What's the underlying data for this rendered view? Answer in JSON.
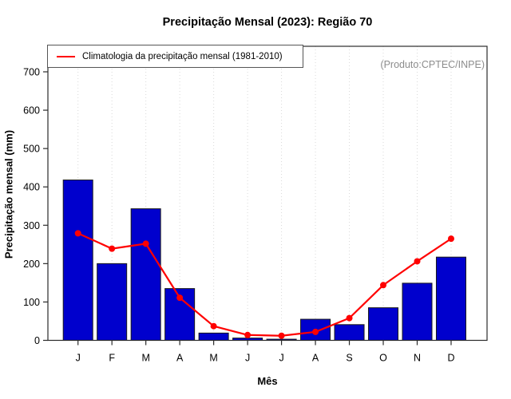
{
  "title": "Precipitação Mensal (2023): Região 70",
  "annotation": "(Produto:CPTEC/INPE)",
  "legend": {
    "label": "Climatologia da precipitação mensal (1981-2010)"
  },
  "colors": {
    "bar": "#0000CD",
    "bar_border": "#1a1a1a",
    "line": "#FF0000",
    "grid": "#D9D9D9",
    "axis": "#2b2b2b",
    "annotation_text": "#8c8c8c"
  },
  "chart_data": {
    "type": "bar",
    "title": "Precipitação Mensal (2023): Região 70",
    "xlabel": "Mês",
    "ylabel": "Precipitação mensal (mm)",
    "categories": [
      "J",
      "F",
      "M",
      "A",
      "M",
      "J",
      "J",
      "A",
      "S",
      "O",
      "N",
      "D"
    ],
    "series": [
      {
        "name": "2023",
        "type": "bar",
        "values": [
          418,
          200,
          343,
          135,
          19,
          6,
          3,
          55,
          41,
          85,
          149,
          217
        ]
      },
      {
        "name": "Climatologia da precipitação mensal (1981-2010)",
        "type": "line",
        "values": [
          279,
          239,
          252,
          111,
          37,
          14,
          12,
          22,
          58,
          144,
          206,
          265
        ]
      }
    ],
    "ylim": [
      0,
      700
    ],
    "yticks": [
      0,
      100,
      200,
      300,
      400,
      500,
      600,
      700
    ],
    "grid": "vertical-dotted",
    "legend_position": "top-left"
  }
}
